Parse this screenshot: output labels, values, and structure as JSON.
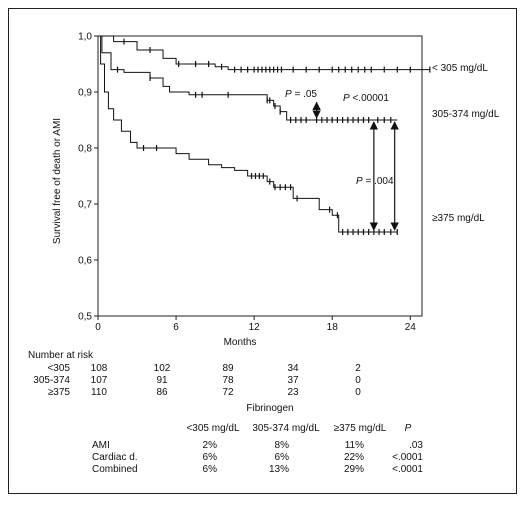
{
  "chart_data": {
    "type": "line",
    "xlabel": "Months",
    "ylabel": "Survival free of death or AMI",
    "xlim": [
      0,
      24
    ],
    "ylim": [
      0.5,
      1.0
    ],
    "x_ticks": [
      0,
      6,
      12,
      18,
      24
    ],
    "y_ticks": [
      0.5,
      0.6,
      0.7,
      0.8,
      0.9,
      1.0
    ],
    "y_tick_labels": [
      "0,5",
      "0,6",
      "0,7",
      "0,8",
      "0,9",
      "1,0"
    ],
    "grid": false,
    "series": [
      {
        "name": "< 305 mg/dL",
        "points": [
          [
            0,
            1.0
          ],
          [
            1.2,
            0.99
          ],
          [
            3.0,
            0.975
          ],
          [
            5.0,
            0.96
          ],
          [
            6.0,
            0.95
          ],
          [
            9.0,
            0.945
          ],
          [
            10.0,
            0.94
          ],
          [
            25.5,
            0.94
          ]
        ],
        "censors": [
          2.0,
          4.0,
          6.2,
          7.5,
          8.5,
          9.5,
          10.5,
          11.0,
          11.5,
          12.0,
          12.3,
          12.6,
          12.9,
          13.2,
          13.5,
          13.8,
          14.1,
          15.0,
          16.0,
          17.0,
          18.0,
          18.5,
          19.0,
          19.5,
          20.0,
          20.5,
          21.0,
          22.0,
          23.0,
          24.0,
          25.5
        ]
      },
      {
        "name": "305-374 mg/dL",
        "points": [
          [
            0,
            1.0
          ],
          [
            0.3,
            0.97
          ],
          [
            1.0,
            0.94
          ],
          [
            2.0,
            0.935
          ],
          [
            4.0,
            0.925
          ],
          [
            5.0,
            0.91
          ],
          [
            5.5,
            0.9
          ],
          [
            7.0,
            0.895
          ],
          [
            13.0,
            0.885
          ],
          [
            13.5,
            0.875
          ],
          [
            14.0,
            0.865
          ],
          [
            14.5,
            0.85
          ],
          [
            23.0,
            0.85
          ]
        ],
        "censors": [
          1.5,
          4.0,
          7.5,
          8.0,
          10.0,
          13.0,
          13.2,
          13.6,
          14.0,
          14.8,
          15.2,
          15.6,
          16.0,
          16.8,
          17.2,
          17.6,
          18.0,
          18.4,
          18.8,
          19.2,
          19.6,
          20.0,
          20.4,
          20.8,
          21.5,
          22.0,
          22.5
        ]
      },
      {
        "name": "≥375 mg/dL",
        "points": [
          [
            0,
            1.0
          ],
          [
            0.2,
            0.95
          ],
          [
            0.5,
            0.9
          ],
          [
            0.8,
            0.87
          ],
          [
            1.2,
            0.85
          ],
          [
            1.8,
            0.83
          ],
          [
            2.5,
            0.81
          ],
          [
            3.0,
            0.8
          ],
          [
            5.0,
            0.8
          ],
          [
            6.0,
            0.79
          ],
          [
            7.0,
            0.78
          ],
          [
            8.5,
            0.77
          ],
          [
            9.5,
            0.765
          ],
          [
            10.5,
            0.76
          ],
          [
            11.5,
            0.75
          ],
          [
            13.0,
            0.74
          ],
          [
            13.5,
            0.73
          ],
          [
            15.0,
            0.71
          ],
          [
            16.0,
            0.71
          ],
          [
            17.0,
            0.69
          ],
          [
            18.0,
            0.68
          ],
          [
            18.5,
            0.65
          ],
          [
            23.0,
            0.65
          ]
        ],
        "censors": [
          3.5,
          4.5,
          11.8,
          12.1,
          12.4,
          12.7,
          13.2,
          13.6,
          14.0,
          14.4,
          14.8,
          15.3,
          17.8,
          18.4,
          18.8,
          19.2,
          19.6,
          20.0,
          20.4,
          20.8,
          21.2,
          21.6,
          22.0,
          22.5,
          23.0
        ]
      }
    ],
    "series_labels": [
      "< 305 mg/dL",
      "305-374 mg/dL",
      "≥375 mg/dL"
    ],
    "annotations": [
      {
        "text_prefix": "P",
        "text_rest": " = .05",
        "from_y": 0.885,
        "to_y": 0.85,
        "x": 16.8
      },
      {
        "text_prefix": "P",
        "text_rest": " <.00001",
        "from_y": 0.85,
        "to_y": 0.65,
        "x": 21.2
      },
      {
        "text_prefix": "P",
        "text_rest": " = .004",
        "from_y": 0.85,
        "to_y": 0.65,
        "x": 22.8
      }
    ]
  },
  "risk_table": {
    "header": "Number at risk",
    "rows": [
      {
        "label": "<305",
        "values": [
          "108",
          "102",
          "89",
          "34",
          "2"
        ]
      },
      {
        "label": "305-374",
        "values": [
          "107",
          "91",
          "78",
          "37",
          "0"
        ]
      },
      {
        "label": "≥375",
        "values": [
          "110",
          "86",
          "72",
          "23",
          "0"
        ]
      }
    ]
  },
  "events_table": {
    "title": "Fibrinogen",
    "columns": [
      "<305 mg/dL",
      "305-374 mg/dL",
      "≥375 mg/dL",
      "P"
    ],
    "rows": [
      {
        "label": "AMI",
        "values": [
          "2%",
          "8%",
          "11%",
          ".03"
        ]
      },
      {
        "label": "Cardiac d.",
        "values": [
          "6%",
          "6%",
          "22%",
          "<.0001"
        ]
      },
      {
        "label": "Combined",
        "values": [
          "6%",
          "13%",
          "29%",
          "<.0001"
        ]
      }
    ]
  }
}
